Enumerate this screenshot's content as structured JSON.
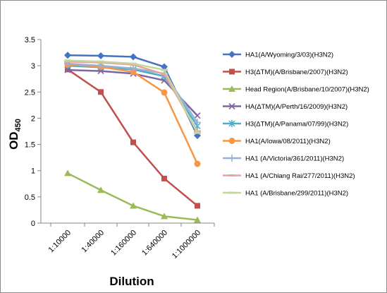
{
  "chart_data": {
    "type": "line",
    "categories": [
      "1:10000",
      "1:40000",
      "1:160000",
      "1:640000",
      "1:1000000"
    ],
    "xlabel": "Dilution",
    "ylabel": "OD",
    "ylabel_sub": "450",
    "ylim": [
      0,
      3.5
    ],
    "yticks": [
      "0",
      "0.5",
      "1",
      "1.5",
      "2",
      "2.5",
      "3",
      "3.5"
    ],
    "grid": false,
    "legend_position": "right",
    "series": [
      {
        "name": "HA1(A/Wyoming/3/03)(H3N2)",
        "color": "#4472C4",
        "marker": "diamond",
        "values": [
          3.2,
          3.19,
          3.17,
          2.98,
          1.67
        ]
      },
      {
        "name": "H3(ΔTM)(A/Brisbane/2007)(H3N2)",
        "color": "#C0504D",
        "marker": "square",
        "values": [
          2.93,
          2.5,
          1.54,
          0.85,
          0.33
        ]
      },
      {
        "name": "Head Region(A/Brisbane/10/2007)(H3N2)",
        "color": "#9BBB59",
        "marker": "triangle",
        "values": [
          0.95,
          0.63,
          0.33,
          0.13,
          0.06
        ]
      },
      {
        "name": "HA(ΔTM)(A/Perth/16/2009)(H3N2)",
        "color": "#8064A2",
        "marker": "x",
        "values": [
          2.92,
          2.9,
          2.85,
          2.72,
          2.05
        ]
      },
      {
        "name": "H3(ΔTM)(A/Panama/07/99)(H3N2)",
        "color": "#4BACC6",
        "marker": "asterisk",
        "values": [
          3.0,
          2.97,
          2.93,
          2.8,
          1.85
        ]
      },
      {
        "name": "HA1(A/Iowa/08/2011)(H3N2)",
        "color": "#F79646",
        "marker": "circle",
        "values": [
          3.02,
          2.98,
          2.88,
          2.49,
          1.13
        ]
      },
      {
        "name": "HA1 (A/Victoria/361/2011)(H3N2)",
        "color": "#95B3D7",
        "marker": "plus",
        "values": [
          3.04,
          3.0,
          2.95,
          2.85,
          1.92
        ]
      },
      {
        "name": "HA1 (A/Chiang Rai/277/2011)(H3N2)",
        "color": "#E6A3A0",
        "marker": "line",
        "values": [
          3.08,
          3.06,
          3.02,
          2.84,
          1.75
        ]
      },
      {
        "name": "HA1 (A/Brisbane/299/2011)(H3N2)",
        "color": "#C3D69B",
        "marker": "line",
        "values": [
          3.1,
          3.08,
          3.04,
          2.92,
          1.72
        ]
      }
    ]
  }
}
